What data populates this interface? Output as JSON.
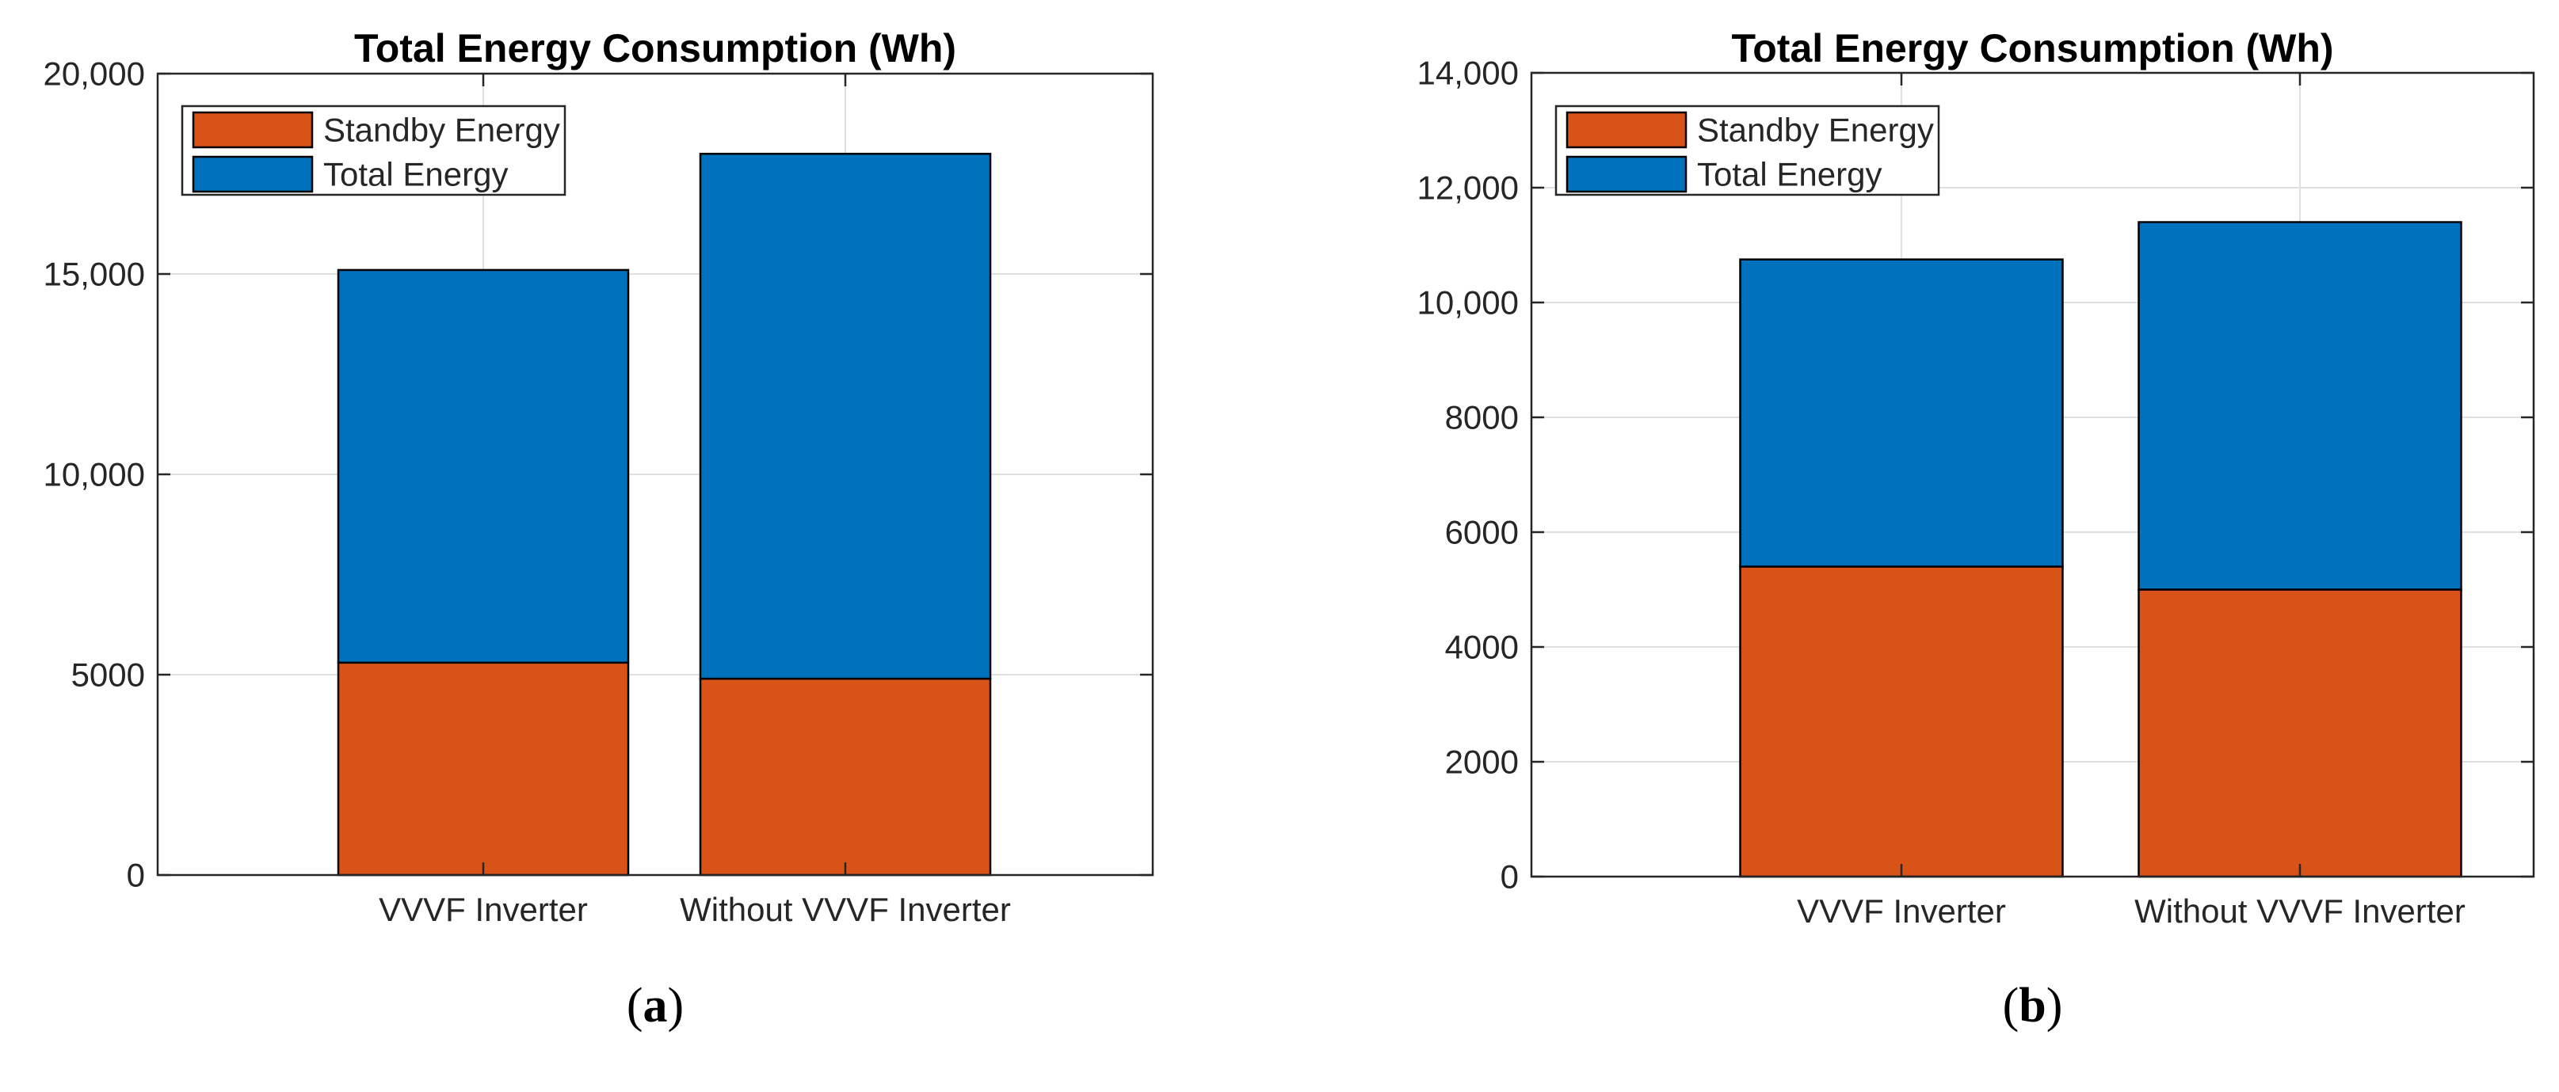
{
  "figure": {
    "background": "#ffffff",
    "captions": [
      {
        "open": "(",
        "letter": "a",
        "close": ")"
      },
      {
        "open": "(",
        "letter": "b",
        "close": ")"
      }
    ]
  },
  "colors": {
    "standby": "#D95319",
    "total": "#0072BD",
    "bar_edge": "#000000",
    "axis": "#262626",
    "grid": "#E0E0E0",
    "tick_text": "#262626",
    "title_text": "#000000",
    "legend_bg": "#ffffff"
  },
  "chart_data": [
    {
      "type": "bar",
      "subtype": "stacked-standby-vs-total",
      "title": "Total Energy Consumption (Wh)",
      "categories": [
        "VVVF Inverter",
        "Without VVVF Inverter"
      ],
      "series": [
        {
          "name": "Standby Energy",
          "color_key": "standby",
          "values": [
            5300,
            4900
          ]
        },
        {
          "name": "Total Energy",
          "color_key": "total",
          "values": [
            15100,
            18000
          ]
        }
      ],
      "xlabel": "",
      "ylabel": "",
      "ylim": [
        0,
        20000
      ],
      "yticks": [
        0,
        5000,
        10000,
        15000,
        20000
      ],
      "ytick_labels": [
        "0",
        "5000",
        "10,000",
        "15,000",
        "20,000"
      ],
      "grid": true,
      "legend": {
        "entries": [
          "Standby Energy",
          "Total Energy"
        ],
        "position": "top-left-inside"
      },
      "caption": "(a)"
    },
    {
      "type": "bar",
      "subtype": "stacked-standby-vs-total",
      "title": "Total Energy Consumption (Wh)",
      "categories": [
        "VVVF Inverter",
        "Without VVVF Inverter"
      ],
      "series": [
        {
          "name": "Standby Energy",
          "color_key": "standby",
          "values": [
            5400,
            5000
          ]
        },
        {
          "name": "Total Energy",
          "color_key": "total",
          "values": [
            10750,
            11400
          ]
        }
      ],
      "xlabel": "",
      "ylabel": "",
      "ylim": [
        0,
        14000
      ],
      "yticks": [
        0,
        2000,
        4000,
        6000,
        8000,
        10000,
        12000,
        14000
      ],
      "ytick_labels": [
        "0",
        "2000",
        "4000",
        "6000",
        "8000",
        "10,000",
        "12,000",
        "14,000"
      ],
      "grid": true,
      "legend": {
        "entries": [
          "Standby Energy",
          "Total Energy"
        ],
        "position": "top-left-inside"
      },
      "caption": "(b)"
    }
  ]
}
